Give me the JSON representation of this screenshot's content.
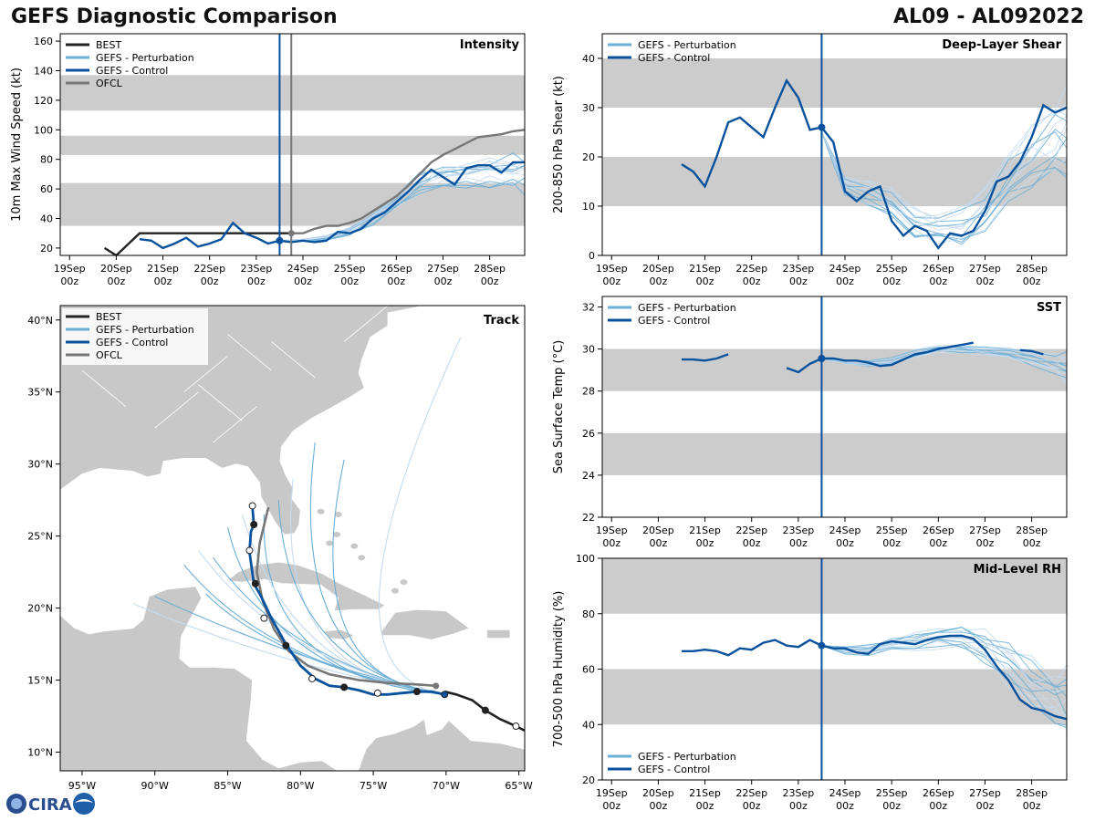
{
  "header": {
    "title": "GEFS Diagnostic Comparison",
    "storm": "AL09 - AL092022"
  },
  "colors": {
    "best": "#222222",
    "perturbation": "#6baed6",
    "pert_light": "#c6dbef",
    "control": "#08519c",
    "ofcl": "#777777",
    "band": "#cccccc",
    "land": "#c8c8c8"
  },
  "time_ticks": [
    {
      "l1": "19Sep",
      "l2": "00z"
    },
    {
      "l1": "20Sep",
      "l2": "00z"
    },
    {
      "l1": "21Sep",
      "l2": "00z"
    },
    {
      "l1": "22Sep",
      "l2": "00z"
    },
    {
      "l1": "23Sep",
      "l2": "00z"
    },
    {
      "l1": "24Sep",
      "l2": "00z"
    },
    {
      "l1": "25Sep",
      "l2": "00z"
    },
    {
      "l1": "26Sep",
      "l2": "00z"
    },
    {
      "l1": "27Sep",
      "l2": "00z"
    },
    {
      "l1": "28Sep",
      "l2": "00z"
    }
  ],
  "chart_data": [
    {
      "id": "intensity",
      "type": "line",
      "title": "Intensity",
      "ylabel": "10m Max Wind Speed (kt)",
      "xlim": [
        -0.2,
        9.75
      ],
      "ylim": [
        15,
        165
      ],
      "yticks": [
        20,
        40,
        60,
        80,
        100,
        120,
        140,
        160
      ],
      "bands": [
        [
          35,
          64
        ],
        [
          83,
          96
        ],
        [
          113,
          137
        ]
      ],
      "init_day": 4.5,
      "ofcl_init_day": 4.75,
      "legend": [
        "BEST",
        "GEFS - Perturbation",
        "GEFS - Control",
        "OFCL"
      ],
      "series": [
        {
          "name": "BEST",
          "x": [
            0.75,
            1.0,
            1.5,
            2.0,
            2.5,
            3.0,
            3.5,
            4.0,
            4.5,
            4.75
          ],
          "y": [
            20,
            15,
            30,
            30,
            30,
            30,
            30,
            30,
            30,
            30
          ]
        },
        {
          "name": "GEFS - Control",
          "x": [
            1.5,
            1.75,
            2.0,
            2.25,
            2.5,
            2.75,
            3.0,
            3.25,
            3.5,
            3.75,
            4.0,
            4.25,
            4.5,
            4.75,
            5.0,
            5.25,
            5.5,
            5.75,
            6.0,
            6.25,
            6.5,
            6.75,
            7.0,
            7.25,
            7.5,
            7.75,
            8.0,
            8.25,
            8.5,
            8.75,
            9.0,
            9.25,
            9.5,
            9.75
          ],
          "y": [
            26,
            25,
            20,
            23,
            27,
            21,
            23,
            26,
            37,
            30,
            27,
            23,
            25,
            24,
            25,
            24,
            25,
            31,
            30,
            33,
            40,
            44,
            51,
            58,
            66,
            73,
            68,
            63,
            74,
            76,
            76,
            71,
            78,
            78
          ]
        },
        {
          "name": "OFCL",
          "x": [
            4.75,
            5.0,
            5.25,
            5.5,
            5.75,
            6.0,
            6.25,
            6.5,
            6.75,
            7.0,
            7.25,
            7.5,
            7.75,
            8.0,
            8.25,
            8.5,
            8.75,
            9.0,
            9.25,
            9.5,
            9.75
          ],
          "y": [
            30,
            30,
            33,
            35,
            35,
            37,
            40,
            45,
            50,
            55,
            62,
            70,
            78,
            83,
            87,
            91,
            95,
            96,
            97,
            99,
            100
          ]
        }
      ],
      "ensemble": {
        "name": "GEFS - Perturbation",
        "x": [
          4.5,
          5.0,
          5.5,
          6.0,
          6.5,
          7.0,
          7.5,
          8.0,
          8.5,
          9.0,
          9.5,
          9.75
        ],
        "count": 14,
        "base": [
          25,
          25,
          27,
          31,
          40,
          52,
          64,
          68,
          70,
          72,
          71,
          70
        ],
        "spread": [
          0,
          1,
          2,
          3,
          5,
          7,
          9,
          10,
          12,
          13,
          15,
          16
        ]
      }
    },
    {
      "id": "shear",
      "type": "line",
      "title": "Deep-Layer Shear",
      "ylabel": "200-850 hPa Shear (kt)",
      "xlim": [
        -0.2,
        9.75
      ],
      "ylim": [
        0,
        45
      ],
      "yticks": [
        0,
        10,
        20,
        30,
        40
      ],
      "bands": [
        [
          10,
          20
        ],
        [
          30,
          40
        ]
      ],
      "init_day": 4.5,
      "legend": [
        "GEFS - Perturbation",
        "GEFS - Control"
      ],
      "series": [
        {
          "name": "GEFS - Control",
          "x": [
            1.5,
            1.75,
            2.0,
            2.25,
            2.5,
            2.75,
            3.0,
            3.25,
            3.5,
            3.75,
            4.0,
            4.25,
            4.5,
            4.75,
            5.0,
            5.25,
            5.5,
            5.75,
            6.0,
            6.25,
            6.5,
            6.75,
            7.0,
            7.25,
            7.5,
            7.75,
            8.0,
            8.25,
            8.5,
            8.75,
            9.0,
            9.25,
            9.5,
            9.75
          ],
          "y": [
            18.5,
            17,
            14,
            20,
            27,
            28,
            26,
            24,
            30,
            35.5,
            32,
            25.5,
            26,
            23,
            13,
            11,
            13,
            14,
            7,
            4,
            6,
            5,
            1.5,
            4.5,
            4,
            5,
            9,
            15,
            16,
            19,
            24,
            30.5,
            29,
            30
          ]
        }
      ],
      "ensemble": {
        "name": "GEFS - Perturbation",
        "x": [
          4.5,
          5.0,
          5.5,
          6.0,
          6.5,
          7.0,
          7.5,
          8.0,
          8.5,
          9.0,
          9.5,
          9.75
        ],
        "count": 14,
        "base": [
          25,
          14,
          13,
          11,
          7,
          6,
          6,
          10,
          16,
          21,
          24,
          25
        ],
        "spread": [
          0,
          2,
          3,
          4,
          4,
          4,
          5,
          6,
          7,
          9,
          10,
          11
        ]
      }
    },
    {
      "id": "sst",
      "type": "line",
      "title": "SST",
      "ylabel": "Sea Surface Temp (°C)",
      "xlim": [
        -0.2,
        9.75
      ],
      "ylim": [
        22,
        32.5
      ],
      "yticks": [
        22,
        24,
        26,
        28,
        30,
        32
      ],
      "bands": [
        [
          24,
          26
        ],
        [
          28,
          30
        ]
      ],
      "init_day": 4.5,
      "legend": [
        "GEFS - Perturbation",
        "GEFS - Control"
      ],
      "series": [
        {
          "name": "GEFS - Control",
          "x": [
            1.5,
            1.75,
            2.0,
            2.25,
            2.5
          ],
          "y": [
            29.5,
            29.5,
            29.45,
            29.55,
            29.75
          ]
        },
        {
          "name": "GEFS - Control",
          "x": [
            3.75,
            4.0,
            4.25,
            4.5,
            4.75,
            5.0,
            5.25,
            5.5,
            5.75,
            6.0,
            6.25,
            6.5,
            6.75,
            7.0,
            7.25,
            7.5,
            7.75
          ],
          "y": [
            29.1,
            28.9,
            29.3,
            29.55,
            29.55,
            29.45,
            29.45,
            29.35,
            29.2,
            29.25,
            29.5,
            29.75,
            29.85,
            30.0,
            30.1,
            30.2,
            30.3
          ]
        },
        {
          "name": "GEFS - Control",
          "x": [
            8.75,
            9.0,
            9.25
          ],
          "y": [
            29.95,
            29.9,
            29.75
          ]
        }
      ],
      "ensemble": {
        "name": "GEFS - Perturbation",
        "x": [
          4.5,
          5.0,
          5.5,
          6.0,
          6.5,
          7.0,
          7.5,
          8.0,
          8.5,
          9.0,
          9.5,
          9.75
        ],
        "count": 14,
        "base": [
          29.55,
          29.4,
          29.3,
          29.4,
          29.8,
          30.0,
          30.0,
          29.9,
          29.8,
          29.6,
          29.3,
          29.1
        ],
        "spread": [
          0,
          0.1,
          0.15,
          0.2,
          0.2,
          0.2,
          0.2,
          0.2,
          0.3,
          0.4,
          0.6,
          0.8
        ]
      }
    },
    {
      "id": "rh",
      "type": "line",
      "title": "Mid-Level RH",
      "ylabel": "700-500 hPa Humidity (%)",
      "xlim": [
        -0.2,
        9.75
      ],
      "ylim": [
        20,
        100
      ],
      "yticks": [
        20,
        40,
        60,
        80,
        100
      ],
      "bands": [
        [
          40,
          60
        ],
        [
          80,
          100
        ]
      ],
      "init_day": 4.5,
      "legend": [
        "GEFS - Perturbation",
        "GEFS - Control"
      ],
      "series": [
        {
          "name": "GEFS - Control",
          "x": [
            1.5,
            1.75,
            2.0,
            2.25,
            2.5,
            2.75,
            3.0,
            3.25,
            3.5,
            3.75,
            4.0,
            4.25,
            4.5,
            4.75,
            5.0,
            5.25,
            5.5,
            5.75,
            6.0,
            6.25,
            6.5,
            6.75,
            7.0,
            7.25,
            7.5,
            7.75,
            8.0,
            8.25,
            8.5,
            8.75,
            9.0,
            9.25,
            9.5,
            9.75
          ],
          "y": [
            66.5,
            66.5,
            67,
            66.5,
            65,
            67.5,
            67,
            69.5,
            70.5,
            68.5,
            68,
            70.5,
            68.5,
            67.5,
            67.5,
            66,
            65.5,
            69,
            70,
            69.5,
            69,
            70.5,
            71.5,
            72,
            72,
            71,
            67,
            61,
            56,
            49,
            46,
            45,
            43,
            42
          ]
        }
      ],
      "ensemble": {
        "name": "GEFS - Perturbation",
        "x": [
          4.5,
          5.0,
          5.5,
          6.0,
          6.5,
          7.0,
          7.5,
          8.0,
          8.5,
          9.0,
          9.5,
          9.75
        ],
        "count": 14,
        "base": [
          68.5,
          67,
          67,
          69,
          70,
          71,
          71,
          68,
          62,
          55,
          50,
          48
        ],
        "spread": [
          0,
          1.5,
          2,
          3,
          4,
          4,
          5,
          7,
          9,
          11,
          13,
          14
        ]
      }
    },
    {
      "id": "track",
      "type": "scatter",
      "title": "Track",
      "xlim": [
        -96.5,
        -64.6
      ],
      "ylim": [
        8.7,
        41
      ],
      "xticks": [
        {
          "v": -95,
          "label": "95°W"
        },
        {
          "v": -90,
          "label": "90°W"
        },
        {
          "v": -85,
          "label": "85°W"
        },
        {
          "v": -80,
          "label": "80°W"
        },
        {
          "v": -75,
          "label": "75°W"
        },
        {
          "v": -70,
          "label": "70°W"
        },
        {
          "v": -65,
          "label": "65°W"
        }
      ],
      "yticks": [
        {
          "v": 10,
          "label": "10°N"
        },
        {
          "v": 15,
          "label": "15°N"
        },
        {
          "v": 20,
          "label": "20°N"
        },
        {
          "v": 25,
          "label": "25°N"
        },
        {
          "v": 30,
          "label": "30°N"
        },
        {
          "v": 35,
          "label": "35°N"
        },
        {
          "v": 40,
          "label": "40°N"
        }
      ],
      "legend": [
        "BEST",
        "GEFS - Perturbation",
        "GEFS - Control",
        "OFCL"
      ],
      "best": {
        "lon": [
          -64.6,
          -65.2,
          -66.3,
          -67.3,
          -68.2,
          -69.3,
          -70.1
        ],
        "lat": [
          11.5,
          11.8,
          12.3,
          12.9,
          13.6,
          14.0,
          14.2
        ],
        "markers": [
          {
            "lon": -65.2,
            "lat": 11.8,
            "fill": "white"
          },
          {
            "lon": -67.3,
            "lat": 12.9,
            "fill": "black"
          }
        ]
      },
      "control": {
        "lon": [
          -70.1,
          -71.0,
          -72.0,
          -73.0,
          -74.0,
          -75.0,
          -76.0,
          -77.0,
          -78.0,
          -79.0,
          -80.0,
          -81.0,
          -82.0,
          -82.7,
          -83.2,
          -83.5,
          -83.4,
          -83.2,
          -83.3
        ],
        "lat": [
          14.0,
          14.2,
          14.2,
          14.1,
          14.0,
          14.0,
          14.3,
          14.5,
          14.6,
          15.1,
          16.0,
          17.5,
          19.3,
          20.8,
          21.7,
          23.9,
          25.3,
          25.8,
          27.0
        ],
        "markers": [
          {
            "lon": -70.1,
            "lat": 14.0,
            "fill": "control"
          },
          {
            "lon": -72.0,
            "lat": 14.2,
            "fill": "black"
          },
          {
            "lon": -74.7,
            "lat": 14.1,
            "fill": "white"
          },
          {
            "lon": -77.0,
            "lat": 14.5,
            "fill": "black"
          },
          {
            "lon": -79.2,
            "lat": 15.1,
            "fill": "white"
          },
          {
            "lon": -81.0,
            "lat": 17.4,
            "fill": "black"
          },
          {
            "lon": -82.5,
            "lat": 19.3,
            "fill": "white"
          },
          {
            "lon": -83.1,
            "lat": 21.7,
            "fill": "black"
          },
          {
            "lon": -83.5,
            "lat": 24.0,
            "fill": "white"
          },
          {
            "lon": -83.2,
            "lat": 25.8,
            "fill": "black"
          },
          {
            "lon": -83.3,
            "lat": 27.1,
            "fill": "white"
          }
        ]
      },
      "ofcl": {
        "lon": [
          -70.7,
          -72.0,
          -74.0,
          -76.0,
          -78.0,
          -79.5,
          -80.8,
          -81.8,
          -82.6,
          -83.0,
          -82.8,
          -82.2
        ],
        "lat": [
          14.6,
          14.7,
          14.8,
          15.0,
          15.4,
          16.0,
          17.0,
          18.5,
          20.5,
          22.5,
          24.5,
          27.0
        ]
      },
      "ensemble_ends": [
        {
          "lon": -69.0,
          "lat": 38.8
        },
        {
          "lon": -77.0,
          "lat": 30.3
        },
        {
          "lon": -79.0,
          "lat": 31.5
        },
        {
          "lon": -80.5,
          "lat": 29.0
        },
        {
          "lon": -81.5,
          "lat": 27.5
        },
        {
          "lon": -82.5,
          "lat": 26.5
        },
        {
          "lon": -84.0,
          "lat": 26.5
        },
        {
          "lon": -85.0,
          "lat": 25.6
        },
        {
          "lon": -86.0,
          "lat": 23.5
        },
        {
          "lon": -87.0,
          "lat": 24.0
        },
        {
          "lon": -88.0,
          "lat": 23.0
        },
        {
          "lon": -90.0,
          "lat": 20.8
        },
        {
          "lon": -91.5,
          "lat": 20.3
        },
        {
          "lon": -86.5,
          "lat": 21.0
        }
      ]
    }
  ],
  "logo": {
    "text": "CIRA"
  }
}
